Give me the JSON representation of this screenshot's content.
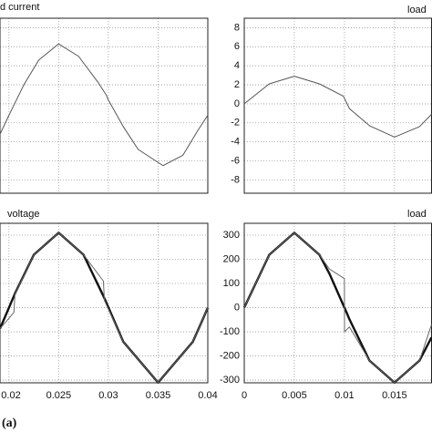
{
  "figure_label": "(a)",
  "chart_data": [
    {
      "type": "line",
      "title": "d current",
      "x": [
        0.0191,
        0.02,
        0.0215,
        0.023,
        0.025,
        0.027,
        0.029,
        0.0298,
        0.03,
        0.0315,
        0.033,
        0.0355,
        0.0375,
        0.039,
        0.04
      ],
      "series": [
        {
          "color": "#555555",
          "values": [
            -3.2,
            -1.2,
            2.0,
            4.6,
            6.3,
            5.0,
            2.2,
            0.9,
            0.4,
            -2.4,
            -4.8,
            -6.5,
            -5.4,
            -2.8,
            -1.2
          ]
        }
      ],
      "xlim": [
        0.0191,
        0.04
      ],
      "ylim": [
        -9.4,
        9
      ],
      "xticks": [
        0.02,
        0.025,
        0.03,
        0.035,
        0.04
      ],
      "yticks": [
        -8,
        -6,
        -4,
        -2,
        0,
        2,
        4,
        6,
        8
      ],
      "grid": true,
      "xtick_labels": false,
      "ytick_labels": false
    },
    {
      "type": "line",
      "title": "load",
      "x": [
        0,
        0.0025,
        0.005,
        0.0075,
        0.0099,
        0.0105,
        0.0125,
        0.015,
        0.0175,
        0.0187
      ],
      "series": [
        {
          "color": "#555555",
          "values": [
            0,
            2.1,
            2.9,
            2.1,
            0.8,
            -0.5,
            -2.3,
            -3.5,
            -2.4,
            -1.1
          ]
        }
      ],
      "xlim": [
        0,
        0.0187
      ],
      "ylim": [
        -9.4,
        9
      ],
      "xticks": [
        0,
        0.005,
        0.01,
        0.015
      ],
      "yticks": [
        -8,
        -6,
        -4,
        -2,
        0,
        2,
        4,
        6,
        8
      ],
      "grid": true,
      "xtick_labels": false,
      "ytick_labels": true
    },
    {
      "type": "line",
      "title": "voltage",
      "x": [
        0.0191,
        0.0205,
        0.0206,
        0.0225,
        0.025,
        0.0275,
        0.0295,
        0.0296,
        0.0315,
        0.035,
        0.0385,
        0.0395,
        0.04
      ],
      "series": [
        {
          "color": "#111111",
          "values": [
            -87,
            48,
            58,
            219,
            310,
            219,
            48,
            39,
            -141,
            -310,
            -141,
            -48,
            0
          ]
        },
        {
          "color": "#666666",
          "values": [
            -87,
            -20,
            55,
            219,
            310,
            219,
            110,
            30,
            -141,
            -310,
            -141,
            -48,
            0
          ]
        }
      ],
      "xlim": [
        0.0191,
        0.04
      ],
      "ylim": [
        -311,
        349
      ],
      "xticks": [
        0.02,
        0.025,
        0.03,
        0.035,
        0.04
      ],
      "yticks": [
        -300,
        -200,
        -100,
        0,
        100,
        200,
        300
      ],
      "grid": true,
      "xtick_labels": true,
      "ytick_labels": false
    },
    {
      "type": "line",
      "title": "load",
      "x": [
        0,
        0.0025,
        0.005,
        0.0075,
        0.0085,
        0.01,
        0.01001,
        0.0105,
        0.0125,
        0.015,
        0.0175,
        0.0187
      ],
      "series": [
        {
          "color": "#111111",
          "values": [
            0,
            219,
            310,
            219,
            141,
            0,
            0,
            -48,
            -219,
            -310,
            -219,
            -123
          ]
        },
        {
          "color": "#666666",
          "values": [
            0,
            219,
            310,
            219,
            160,
            120,
            -100,
            -80,
            -219,
            -310,
            -219,
            -70
          ]
        }
      ],
      "xlim": [
        0,
        0.0187
      ],
      "ylim": [
        -311,
        349
      ],
      "xticks": [
        0,
        0.005,
        0.01,
        0.015
      ],
      "yticks": [
        -300,
        -200,
        -100,
        0,
        100,
        200,
        300
      ],
      "grid": true,
      "xtick_labels": true,
      "ytick_labels": true
    }
  ]
}
